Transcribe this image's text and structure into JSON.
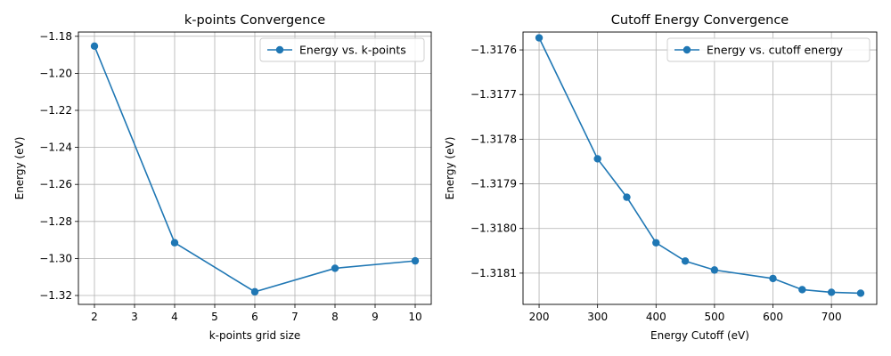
{
  "chart_data": [
    {
      "type": "line",
      "title": "k-points Convergence",
      "xlabel": "k-points grid size",
      "ylabel": "Energy (eV)",
      "xlim": [
        1.6,
        10.4
      ],
      "ylim": [
        -1.3248,
        -1.1777
      ],
      "xticks": [
        2,
        3,
        4,
        5,
        6,
        7,
        8,
        9,
        10
      ],
      "yticks": [
        -1.32,
        -1.3,
        -1.28,
        -1.26,
        -1.24,
        -1.22,
        -1.2,
        -1.18
      ],
      "ytick_labels": [
        "−1.32",
        "−1.30",
        "−1.28",
        "−1.26",
        "−1.24",
        "−1.22",
        "−1.20",
        "−1.18"
      ],
      "grid": true,
      "legend_position": "top-right",
      "series": [
        {
          "name": "Energy vs. k-points",
          "color": "#1f77b4",
          "marker": "circle",
          "x": [
            2,
            4,
            6,
            8,
            10
          ],
          "y": [
            -1.1853,
            -1.2915,
            -1.318,
            -1.3053,
            -1.3013
          ]
        }
      ]
    },
    {
      "type": "line",
      "title": "Cutoff Energy Convergence",
      "xlabel": "Energy Cutoff (eV)",
      "ylabel": "Energy (eV)",
      "xlim": [
        172.5,
        777.5
      ],
      "ylim": [
        -1.31817,
        -1.31756
      ],
      "xticks": [
        200,
        300,
        400,
        500,
        600,
        700
      ],
      "yticks": [
        -1.3181,
        -1.318,
        -1.3179,
        -1.3178,
        -1.3177,
        -1.3176
      ],
      "ytick_labels": [
        "−1.3181",
        "−1.3180",
        "−1.3179",
        "−1.3178",
        "−1.3177",
        "−1.3176"
      ],
      "grid": true,
      "legend_position": "top-right",
      "series": [
        {
          "name": "Energy vs. cutoff energy",
          "color": "#1f77b4",
          "marker": "circle",
          "x": [
            200,
            300,
            350,
            400,
            450,
            500,
            600,
            650,
            700,
            750
          ],
          "y": [
            -1.317573,
            -1.317844,
            -1.31793,
            -1.318032,
            -1.318073,
            -1.318093,
            -1.318112,
            -1.318137,
            -1.318143,
            -1.318145
          ]
        }
      ]
    }
  ]
}
